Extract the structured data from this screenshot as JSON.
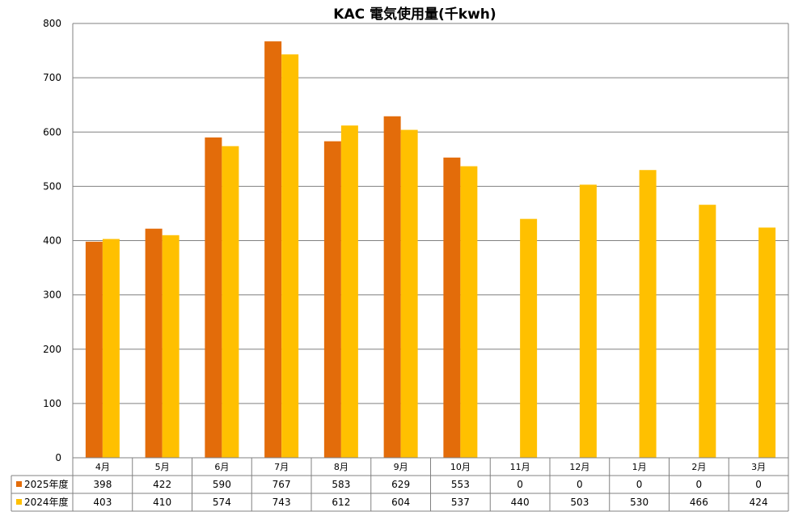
{
  "chart_data": {
    "type": "bar",
    "title": "KAC 電気使用量(千kwh)",
    "categories": [
      "4月",
      "5月",
      "6月",
      "7月",
      "8月",
      "9月",
      "10月",
      "11月",
      "12月",
      "1月",
      "2月",
      "3月"
    ],
    "series": [
      {
        "name": "2025年度",
        "color": "#E36C0A",
        "values": [
          398,
          422,
          590,
          767,
          583,
          629,
          553,
          0,
          0,
          0,
          0,
          0
        ]
      },
      {
        "name": "2024年度",
        "color": "#FFC000",
        "values": [
          403,
          410,
          574,
          743,
          612,
          604,
          537,
          440,
          503,
          530,
          466,
          424
        ]
      }
    ],
    "yticks": [
      0,
      100,
      200,
      300,
      400,
      500,
      600,
      700,
      800
    ],
    "ylim": [
      0,
      800
    ],
    "grid": true,
    "legend": "data-table"
  }
}
